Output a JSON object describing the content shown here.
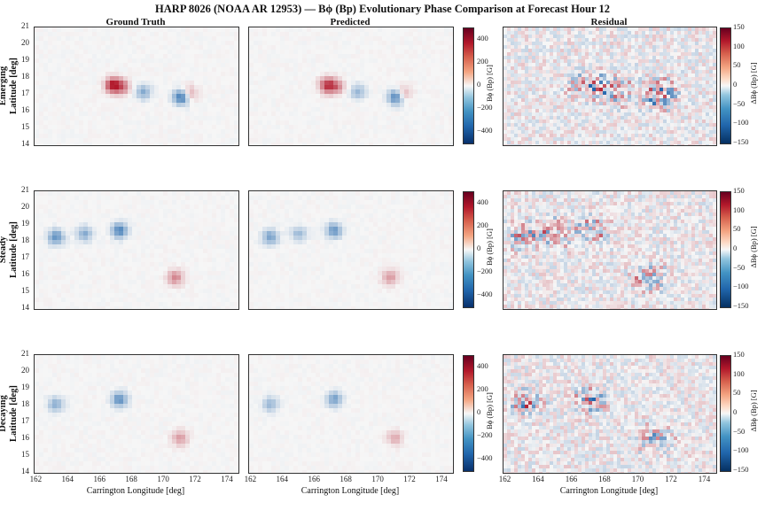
{
  "title": "HARP 8026 (NOAA AR 12953) — Bϕ (Bp) Evolutionary Phase Comparison at Forecast Hour 12",
  "columns": [
    "Ground Truth",
    "Predicted",
    "Residual"
  ],
  "rows": [
    {
      "label_line1": "Emerging",
      "label_line2": "Latitude [deg]"
    },
    {
      "label_line1": "Steady",
      "label_line2": "Latitude [deg]"
    },
    {
      "label_line1": "Decaying",
      "label_line2": "Latitude [deg]"
    }
  ],
  "xlabel": "Carrington Longitude [deg]",
  "colorbars": {
    "field_label": "Bϕ (Bp) [G]",
    "residual_label": "ΔBϕ (Bp) [G]",
    "field_ticks": [
      "400",
      "200",
      "0",
      "−200",
      "−400"
    ],
    "residual_ticks": [
      "150",
      "100",
      "50",
      "0",
      "−50",
      "−100",
      "−150"
    ]
  },
  "colors": {
    "negative": "#08306b",
    "positive": "#67001f",
    "neutral": "#f7f7f7"
  },
  "chart_data": {
    "type": "heatmap",
    "title": "HARP 8026 (NOAA AR 12953) — Bϕ (Bp) Evolutionary Phase Comparison at Forecast Hour 12",
    "panels_layout": "3 rows x 3 columns",
    "xlabel": "Carrington Longitude [deg]",
    "ylabel": "Latitude [deg]",
    "xlim": [
      161.8,
      174.6
    ],
    "ylim": [
      14,
      21
    ],
    "x_ticks": [
      162,
      164,
      166,
      168,
      170,
      172,
      174
    ],
    "y_ticks": [
      14,
      15,
      16,
      17,
      18,
      19,
      20,
      21
    ],
    "field_range": [
      -500,
      500
    ],
    "residual_range": [
      -150,
      150
    ],
    "colormap": "RdBu_r",
    "phases": [
      {
        "name": "Emerging",
        "features": [
          {
            "lon": 166.6,
            "lat": 17.7,
            "sign": "positive",
            "strength": 500
          },
          {
            "lon": 167.2,
            "lat": 17.6,
            "sign": "positive",
            "strength": 250
          },
          {
            "lon": 168.5,
            "lat": 17.3,
            "sign": "negative",
            "strength": -250
          },
          {
            "lon": 170.9,
            "lat": 17.0,
            "sign": "negative",
            "strength": -500
          },
          {
            "lon": 171.3,
            "lat": 17.2,
            "sign": "positive",
            "strength": 250
          }
        ]
      },
      {
        "name": "Steady",
        "features": [
          {
            "lon": 163.0,
            "lat": 18.4,
            "sign": "negative",
            "strength": -350
          },
          {
            "lon": 164.8,
            "lat": 18.6,
            "sign": "negative",
            "strength": -250
          },
          {
            "lon": 167.0,
            "lat": 18.8,
            "sign": "negative",
            "strength": -400
          },
          {
            "lon": 170.5,
            "lat": 16.0,
            "sign": "positive",
            "strength": 250
          }
        ]
      },
      {
        "name": "Decaying",
        "features": [
          {
            "lon": 163.0,
            "lat": 18.2,
            "sign": "negative",
            "strength": -250
          },
          {
            "lon": 167.0,
            "lat": 18.5,
            "sign": "negative",
            "strength": -350
          },
          {
            "lon": 170.8,
            "lat": 16.2,
            "sign": "positive",
            "strength": 200
          }
        ]
      }
    ]
  }
}
